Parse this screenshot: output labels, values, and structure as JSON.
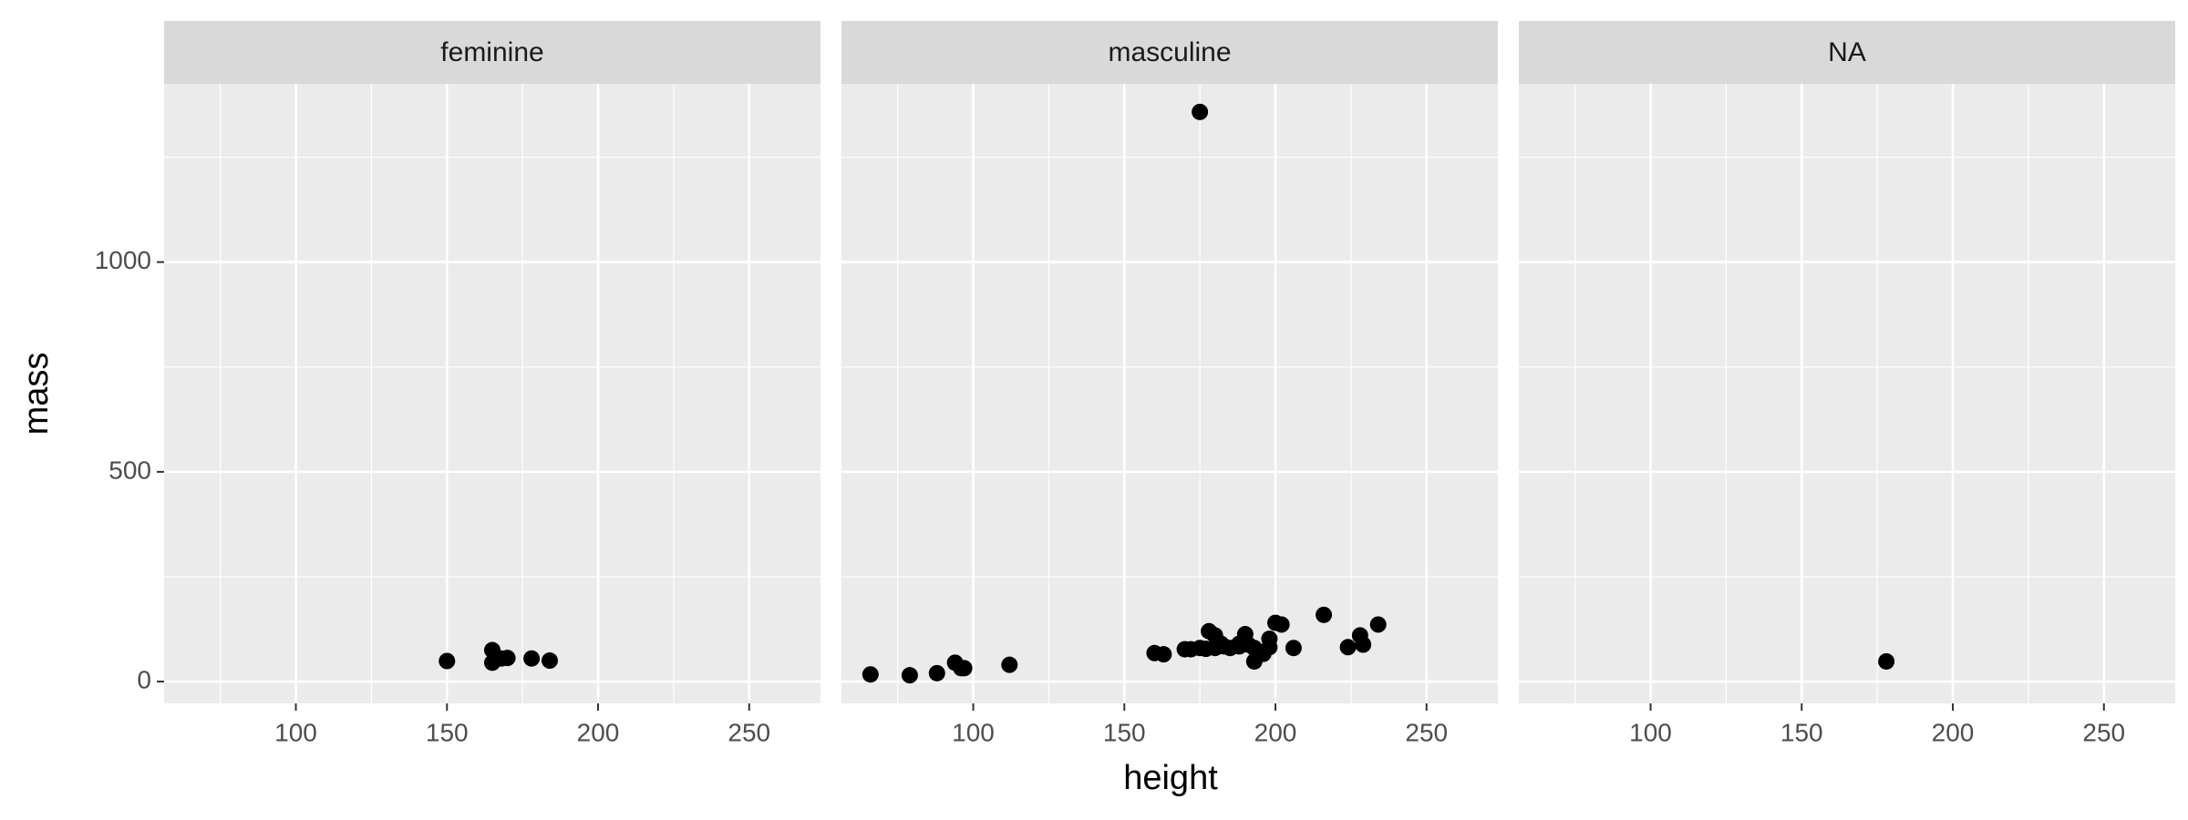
{
  "chart_data": {
    "type": "scatter",
    "x_label": "height",
    "y_label": "mass",
    "xlim": [
      56.4,
      273.6
    ],
    "xticks": [
      100,
      150,
      200,
      250
    ],
    "xminor": [
      75,
      125,
      175,
      225
    ],
    "ylim": [
      -52,
      1425
    ],
    "yticks": [
      0,
      500,
      1000
    ],
    "yminor": [
      250,
      750,
      1250
    ],
    "grid": true,
    "color": "#000000",
    "facets": [
      {
        "title": "feminine",
        "x": [
          150,
          165,
          165,
          168,
          170,
          178,
          184
        ],
        "values": [
          49,
          75,
          45,
          55,
          56.2,
          55,
          50
        ]
      },
      {
        "title": "masculine",
        "x": [
          66,
          79,
          88,
          94,
          96,
          97,
          112,
          160,
          163,
          170,
          172,
          175,
          175,
          177,
          178,
          180,
          180,
          182,
          183,
          185,
          188,
          188,
          190,
          191,
          193,
          193,
          196,
          198,
          198,
          200,
          202,
          206,
          216,
          224,
          228,
          229,
          234
        ],
        "values": [
          17,
          15,
          20,
          45,
          32,
          32,
          40,
          68,
          65,
          77,
          77,
          1358,
          80,
          78,
          120,
          110,
          80,
          90,
          84,
          80,
          84,
          90,
          113,
          88,
          80,
          48,
          66,
          82,
          102,
          140,
          136,
          80,
          159,
          82,
          110,
          88,
          136
        ]
      },
      {
        "title": "NA",
        "x": [
          178
        ],
        "values": [
          48
        ]
      }
    ]
  }
}
